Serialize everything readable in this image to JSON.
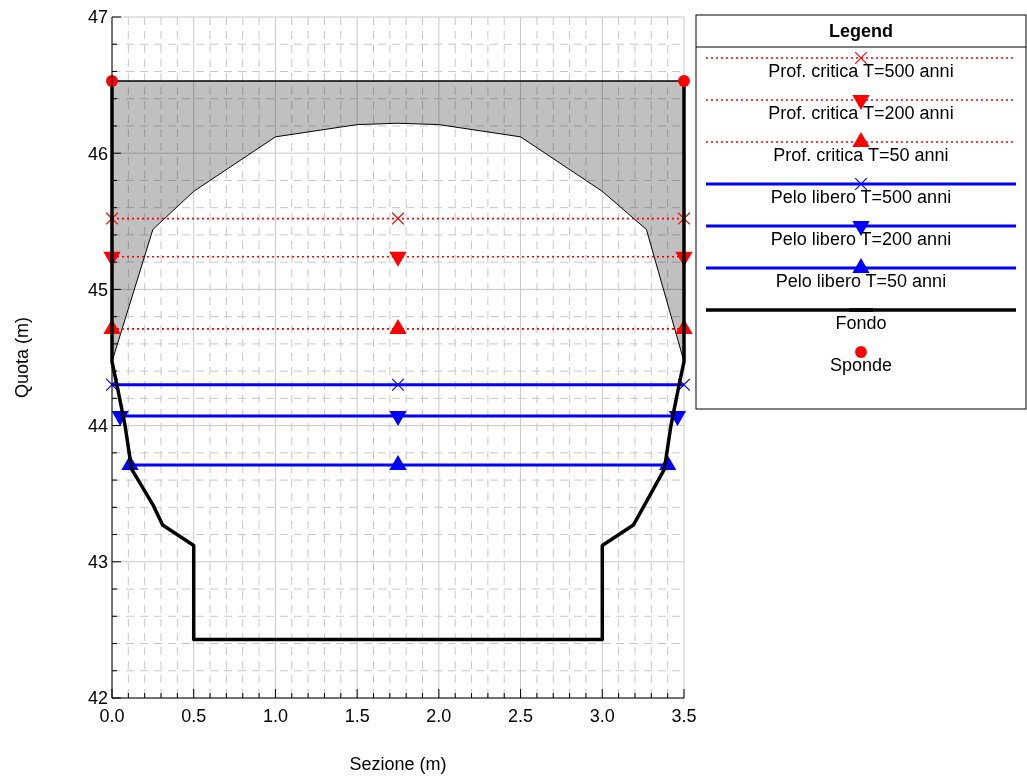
{
  "chart_data": {
    "type": "line",
    "xlabel": "Sezione (m)",
    "ylabel": "Quota (m)",
    "legend_title": "Legend",
    "legend": "right",
    "grid": true,
    "ref_lines": [
      {
        "axis": "y",
        "value": 46.53,
        "color": "#000000",
        "line_style": "solid"
      }
    ],
    "xlim": [
      0,
      3.5
    ],
    "ylim": [
      42,
      47
    ],
    "xticks": [
      {
        "value": 0,
        "label": "0.0"
      },
      {
        "value": 0.1,
        "label": null
      },
      {
        "value": 0.2,
        "label": null
      },
      {
        "value": 0.3,
        "label": null
      },
      {
        "value": 0.4,
        "label": null
      },
      {
        "value": 0.5,
        "label": "0.5"
      },
      {
        "value": 0.6,
        "label": null
      },
      {
        "value": 0.7,
        "label": null
      },
      {
        "value": 0.8,
        "label": null
      },
      {
        "value": 0.9,
        "label": null
      },
      {
        "value": 1,
        "label": "1.0"
      },
      {
        "value": 1.1,
        "label": null
      },
      {
        "value": 1.2,
        "label": null
      },
      {
        "value": 1.3,
        "label": null
      },
      {
        "value": 1.4,
        "label": null
      },
      {
        "value": 1.5,
        "label": "1.5"
      },
      {
        "value": 1.6,
        "label": null
      },
      {
        "value": 1.7,
        "label": null
      },
      {
        "value": 1.8,
        "label": null
      },
      {
        "value": 1.9,
        "label": null
      },
      {
        "value": 2,
        "label": "2.0"
      },
      {
        "value": 2.1,
        "label": null
      },
      {
        "value": 2.2,
        "label": null
      },
      {
        "value": 2.3,
        "label": null
      },
      {
        "value": 2.4,
        "label": null
      },
      {
        "value": 2.5,
        "label": "2.5"
      },
      {
        "value": 2.6,
        "label": null
      },
      {
        "value": 2.7,
        "label": null
      },
      {
        "value": 2.8,
        "label": null
      },
      {
        "value": 2.9,
        "label": null
      },
      {
        "value": 3,
        "label": "3.0"
      },
      {
        "value": 3.1,
        "label": null
      },
      {
        "value": 3.2,
        "label": null
      },
      {
        "value": 3.3,
        "label": null
      },
      {
        "value": 3.4,
        "label": null
      },
      {
        "value": 3.5,
        "label": "3.5"
      }
    ],
    "yticks": [
      42,
      {
        "value": 42.2,
        "label": null
      },
      {
        "value": 42.4,
        "label": null
      },
      {
        "value": 42.6,
        "label": null
      },
      {
        "value": 42.8,
        "label": null
      },
      43,
      {
        "value": 43.2,
        "label": null
      },
      {
        "value": 43.4,
        "label": null
      },
      {
        "value": 43.6,
        "label": null
      },
      {
        "value": 43.8,
        "label": null
      },
      44,
      {
        "value": 44.2,
        "label": null
      },
      {
        "value": 44.4,
        "label": null
      },
      {
        "value": 44.6,
        "label": null
      },
      {
        "value": 44.8,
        "label": null
      },
      45,
      {
        "value": 45.2,
        "label": null
      },
      {
        "value": 45.4,
        "label": null
      },
      {
        "value": 45.6,
        "label": null
      },
      {
        "value": 45.8,
        "label": null
      },
      46,
      {
        "value": 46.2,
        "label": null
      },
      {
        "value": 46.4,
        "label": null
      },
      {
        "value": 46.6,
        "label": null
      },
      {
        "value": 46.8,
        "label": null
      },
      47
    ],
    "series": [
      {
        "type": "line",
        "color": "#000000",
        "line_style": "solid",
        "marker": "none",
        "x": [
          0,
          0.25,
          0.5,
          1.0,
          1.5,
          1.75,
          2.0,
          2.5,
          3.0,
          3.27,
          3.5
        ],
        "values": [
          44.47,
          45.44,
          45.72,
          46.12,
          46.21,
          46.22,
          46.21,
          46.12,
          45.72,
          45.44,
          44.47
        ],
        "lower": [
          44.47,
          45.44,
          45.72,
          46.12,
          46.21,
          46.22,
          46.21,
          46.12,
          45.72,
          45.44,
          44.47
        ],
        "upper": [
          46.53,
          46.53,
          46.53,
          46.53,
          46.53,
          46.53,
          46.53,
          46.53,
          46.53,
          46.53,
          46.53
        ]
      },
      {
        "name": "Prof. critica T=500 anni",
        "color": "#ff0000",
        "line_style": "dotted",
        "marker": "cross",
        "x": [
          0,
          1.75,
          3.5
        ],
        "values": [
          45.52,
          45.52,
          45.52
        ]
      },
      {
        "name": "Prof. critica T=200 anni",
        "color": "#ff0000",
        "line_style": "dotted",
        "marker": "triangle-down",
        "x": [
          0,
          1.75,
          3.5
        ],
        "values": [
          45.24,
          45.24,
          45.24
        ]
      },
      {
        "name": "Prof. critica T=50 anni",
        "color": "#ff0000",
        "line_style": "dotted",
        "marker": "triangle",
        "x": [
          0,
          1.75,
          3.5
        ],
        "values": [
          44.71,
          44.71,
          44.71
        ]
      },
      {
        "name": "Pelo libero T=500 anni",
        "color": "#0000ff",
        "line_style": "solid",
        "marker": "cross",
        "x": [
          0,
          1.75,
          3.5
        ],
        "values": [
          44.3,
          44.3,
          44.3
        ]
      },
      {
        "name": "Pelo libero T=200 anni",
        "color": "#0000ff",
        "line_style": "solid",
        "marker": "triangle-down",
        "x": [
          0.05,
          1.75,
          3.46
        ],
        "values": [
          44.07,
          44.07,
          44.07
        ]
      },
      {
        "name": "Pelo libero T=50 anni",
        "color": "#0000ff",
        "line_style": "solid",
        "marker": "triangle",
        "x": [
          0.11,
          1.75,
          3.4
        ],
        "values": [
          43.71,
          43.71,
          43.71
        ]
      },
      {
        "name": "Fondo",
        "color": "#000000",
        "line_style": "solid",
        "marker": "none",
        "x": [
          0,
          0,
          0.03,
          0.08,
          0.12,
          0.25,
          0.31,
          0.5,
          0.5,
          3.0,
          3.0,
          3.19,
          3.26,
          3.38,
          3.42,
          3.47,
          3.5,
          3.5
        ],
        "values": [
          46.53,
          44.47,
          44.3,
          44.0,
          43.68,
          43.42,
          43.27,
          43.12,
          42.43,
          42.43,
          43.12,
          43.27,
          43.42,
          43.68,
          44.0,
          44.3,
          44.47,
          46.53
        ]
      },
      {
        "type": "scatter",
        "name": "Sponde",
        "color": "#ff0000",
        "marker": "circle",
        "x": [
          0,
          3.5
        ],
        "values": [
          46.53,
          46.53
        ]
      }
    ]
  }
}
